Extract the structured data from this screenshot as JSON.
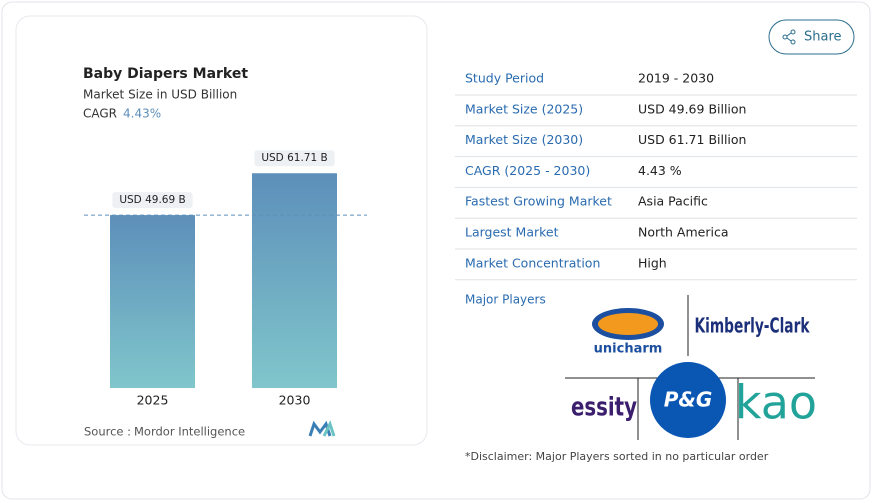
{
  "chart_data": {
    "type": "bar",
    "title": "Baby Diapers Market",
    "subtitle": "Market Size in USD Billion",
    "cagr_label": "CAGR",
    "cagr": "4.43%",
    "categories": [
      "2025",
      "2030"
    ],
    "values": [
      49.69,
      61.71
    ],
    "value_labels": [
      "USD 49.69 B",
      "USD 61.71 B"
    ],
    "source_label": "Source :",
    "source": "Mordor Intelligence"
  },
  "share": "Share",
  "table": {
    "rows": [
      [
        "Study Period",
        "2019 - 2030"
      ],
      [
        "Market Size (2025)",
        "USD 49.69 Billion"
      ],
      [
        "Market Size (2030)",
        "USD 61.71 Billion"
      ],
      [
        "CAGR (2025 - 2030)",
        "4.43 %"
      ],
      [
        "Fastest Growing Market",
        "Asia Pacific"
      ],
      [
        "Largest Market",
        "North America"
      ],
      [
        "Market Concentration",
        "High"
      ]
    ]
  },
  "major_players": {
    "label": "Major Players",
    "logos": [
      "unicharm",
      "Kimberly-Clark",
      "essity",
      "P&G",
      "kao"
    ]
  },
  "disclaimer": "*Disclaimer: Major Players sorted in no particular order"
}
